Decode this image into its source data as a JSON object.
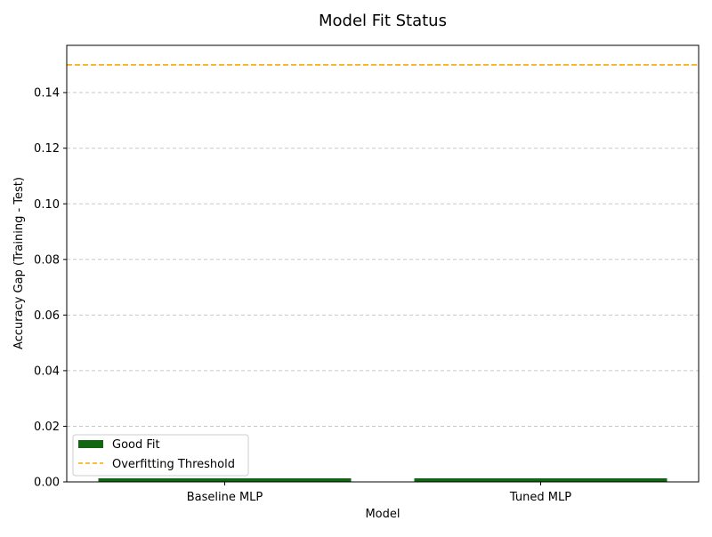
{
  "chart_data": {
    "type": "bar",
    "title": "Model Fit Status",
    "xlabel": "Model",
    "ylabel": "Accuracy Gap (Training - Test)",
    "categories": [
      "Baseline MLP",
      "Tuned MLP"
    ],
    "series": [
      {
        "name": "Good Fit",
        "values": [
          0.001,
          0.001
        ],
        "color": "#116611"
      }
    ],
    "threshold": {
      "name": "Overfitting Threshold",
      "value": 0.15,
      "color": "#FFA500",
      "style": "dashed"
    },
    "ylim": [
      0,
      0.157
    ],
    "yticks": [
      "0.00",
      "0.02",
      "0.04",
      "0.06",
      "0.08",
      "0.10",
      "0.12",
      "0.14"
    ],
    "grid": "y-dashed",
    "legend": "bottom-left"
  }
}
